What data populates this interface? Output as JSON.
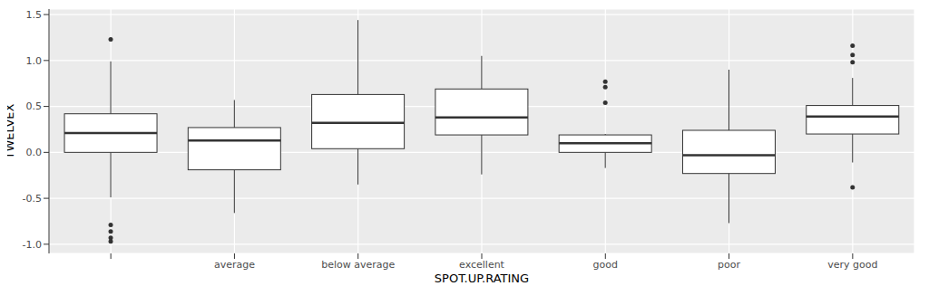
{
  "chart_data": {
    "type": "box",
    "x_label": "SPOT.UP.RATING",
    "y_label": "TWELVEX",
    "categories": [
      null,
      "average",
      "below average",
      "excellent",
      "good",
      "poor",
      "very good"
    ],
    "whisker_low": [
      -0.49,
      -0.66,
      -0.35,
      -0.24,
      -0.17,
      -0.77,
      -0.11
    ],
    "q1": [
      0.0,
      -0.19,
      0.04,
      0.19,
      0.0,
      -0.23,
      0.2
    ],
    "median": [
      0.21,
      0.13,
      0.32,
      0.38,
      0.1,
      -0.03,
      0.39
    ],
    "q3": [
      0.42,
      0.27,
      0.63,
      0.69,
      0.19,
      0.24,
      0.51
    ],
    "whisker_high": [
      0.99,
      0.57,
      1.44,
      1.05,
      0.2,
      0.9,
      0.81
    ],
    "outliers": [
      [
        1.23,
        -0.79,
        -0.86,
        -0.93,
        -0.97
      ],
      [],
      [],
      [],
      [
        0.77,
        0.71,
        0.54
      ],
      [],
      [
        1.16,
        1.06,
        0.98,
        -0.38
      ]
    ],
    "ylim": [
      -1.1,
      1.56
    ],
    "yticks": [
      {
        "value": -1,
        "label": "-1.0"
      },
      -0.5,
      {
        "value": 0,
        "label": "0.0"
      },
      0.5,
      {
        "value": 1,
        "label": "1.0"
      },
      1.5
    ],
    "grid": true,
    "color": "#ffffff"
  }
}
